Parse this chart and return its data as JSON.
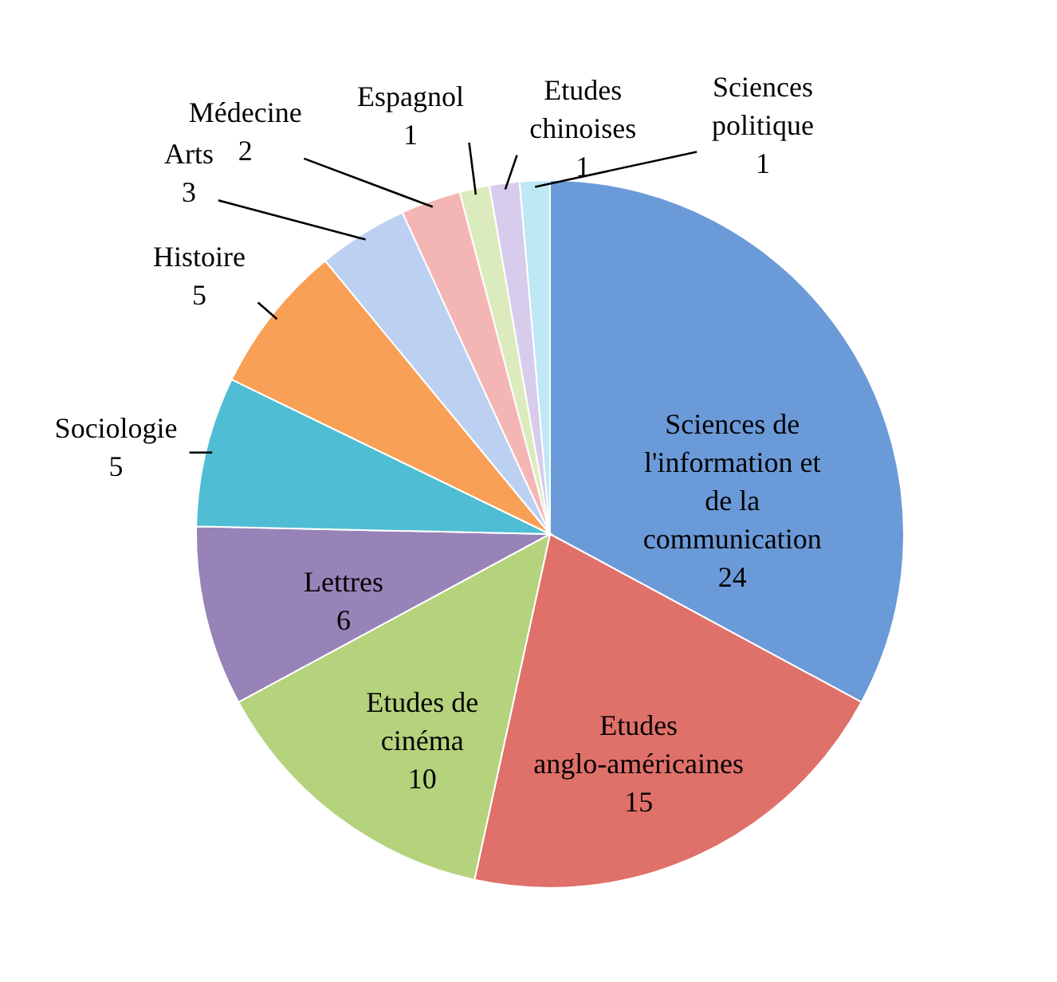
{
  "chart_data": {
    "type": "pie",
    "categories": [
      "Sciences de l'information et de la communication",
      "Etudes anglo-américaines",
      "Etudes de cinéma",
      "Lettres",
      "Sociologie",
      "Histoire",
      "Arts",
      "Médecine",
      "Espagnol",
      "Etudes chinoises",
      "Sciences politique"
    ],
    "values": [
      24,
      15,
      10,
      6,
      5,
      5,
      3,
      2,
      1,
      1,
      1
    ],
    "colors": [
      "#6b9ad8",
      "#e0706a",
      "#b5d27c",
      "#9883b8",
      "#4fbdd3",
      "#f8a055",
      "#bcd1f2",
      "#f4b6b4",
      "#dcebbd",
      "#d7cceb",
      "#bde8f4"
    ],
    "data_labels": true
  }
}
